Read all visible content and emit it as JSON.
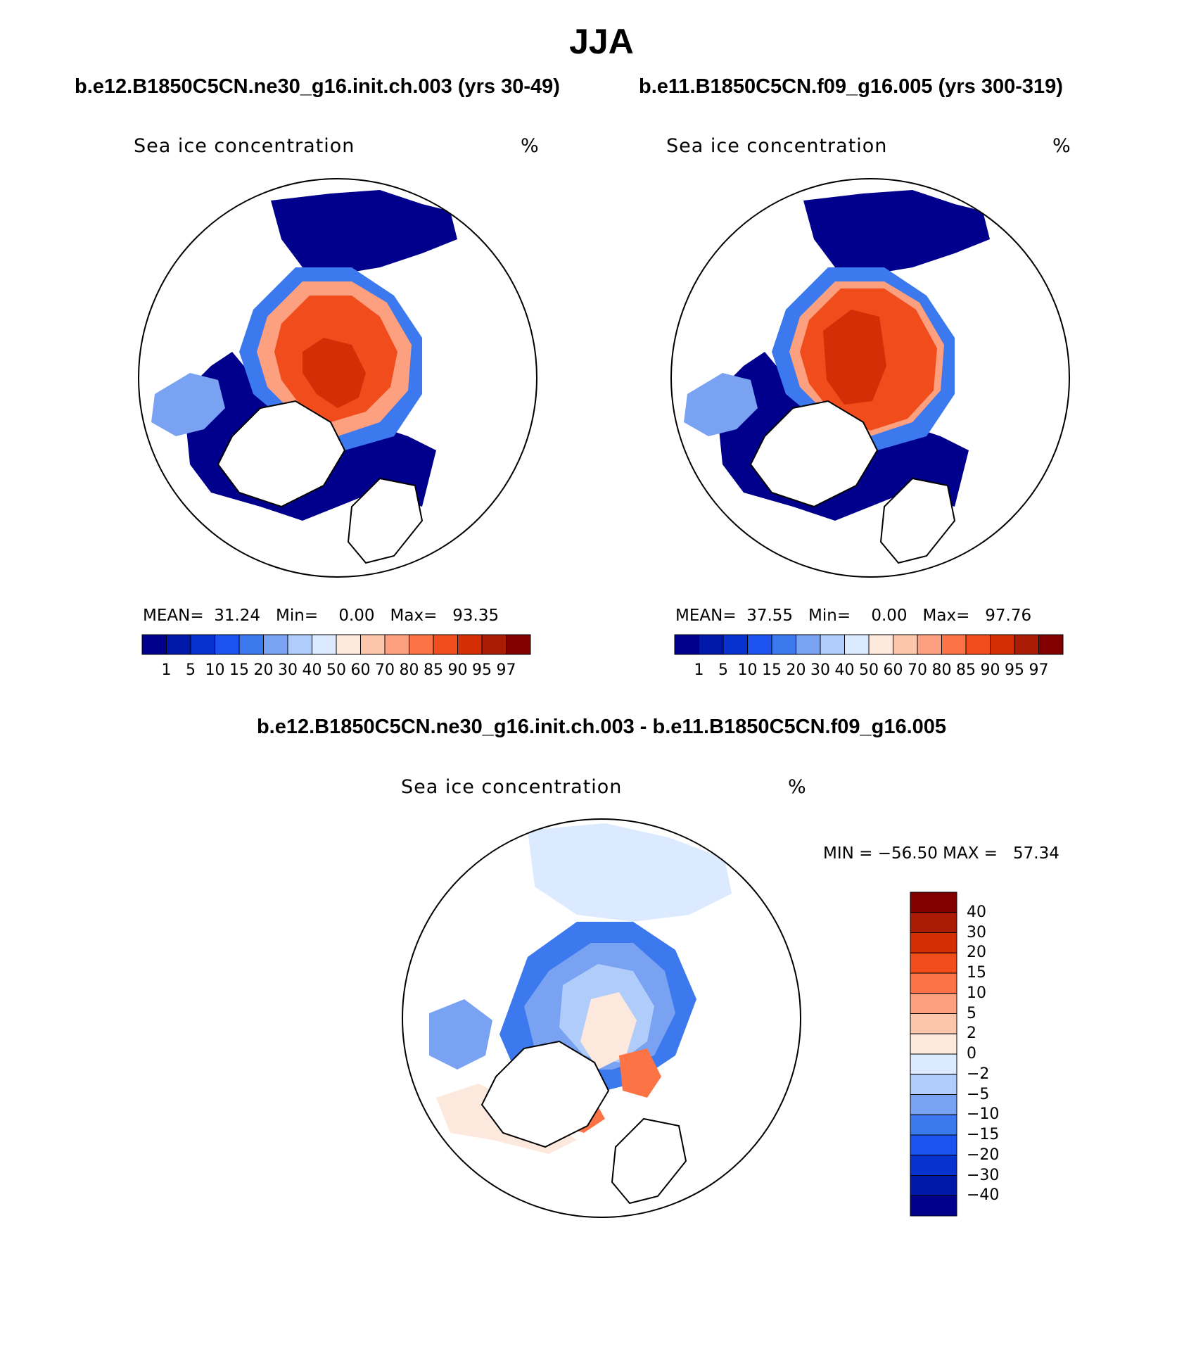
{
  "title": "JJA",
  "panels": [
    {
      "case_label": "b.e12.B1850C5CN.ne30_g16.init.ch.003 (yrs 30-49)",
      "variable": "Sea ice concentration",
      "units": "%",
      "stats": {
        "mean_label": "MEAN=",
        "mean": "31.24",
        "min_label": "Min=",
        "min": "0.00",
        "max_label": "Max=",
        "max": "93.35"
      }
    },
    {
      "case_label": "b.e11.B1850C5CN.f09_g16.005 (yrs 300-319)",
      "variable": "Sea ice concentration",
      "units": "%",
      "stats": {
        "mean_label": "MEAN=",
        "mean": "37.55",
        "min_label": "Min=",
        "min": "0.00",
        "max_label": "Max=",
        "max": "97.76"
      }
    }
  ],
  "diff_panel": {
    "case_label": "b.e12.B1850C5CN.ne30_g16.init.ch.003 - b.e11.B1850C5CN.f09_g16.005",
    "variable": "Sea ice concentration",
    "units": "%",
    "minmax_text": "MIN = −56.50 MAX =   57.34"
  },
  "colorbar_abs": {
    "levels": [
      "1",
      "5",
      "10",
      "15",
      "20",
      "30",
      "40",
      "50",
      "60",
      "70",
      "80",
      "85",
      "90",
      "95",
      "97"
    ],
    "colors": [
      "#00008c",
      "#0018aa",
      "#0832d0",
      "#1c52f0",
      "#3c78ee",
      "#7aa2f2",
      "#b0ccfa",
      "#dceaff",
      "#fce8dc",
      "#fcc6ac",
      "#fca080",
      "#fc7446",
      "#f04c1c",
      "#d42e06",
      "#aa1c06",
      "#820000"
    ]
  },
  "colorbar_diff": {
    "levels": [
      "40",
      "30",
      "20",
      "15",
      "10",
      "5",
      "2",
      "0",
      "−2",
      "−5",
      "−10",
      "−15",
      "−20",
      "−30",
      "−40"
    ],
    "colors": [
      "#820000",
      "#aa1c06",
      "#d42e06",
      "#f04c1c",
      "#fc7446",
      "#fca080",
      "#fcc6ac",
      "#fce8dc",
      "#dceaff",
      "#b0ccfa",
      "#7aa2f2",
      "#3c78ee",
      "#1c52f0",
      "#0832d0",
      "#0018aa",
      "#00008c"
    ]
  }
}
